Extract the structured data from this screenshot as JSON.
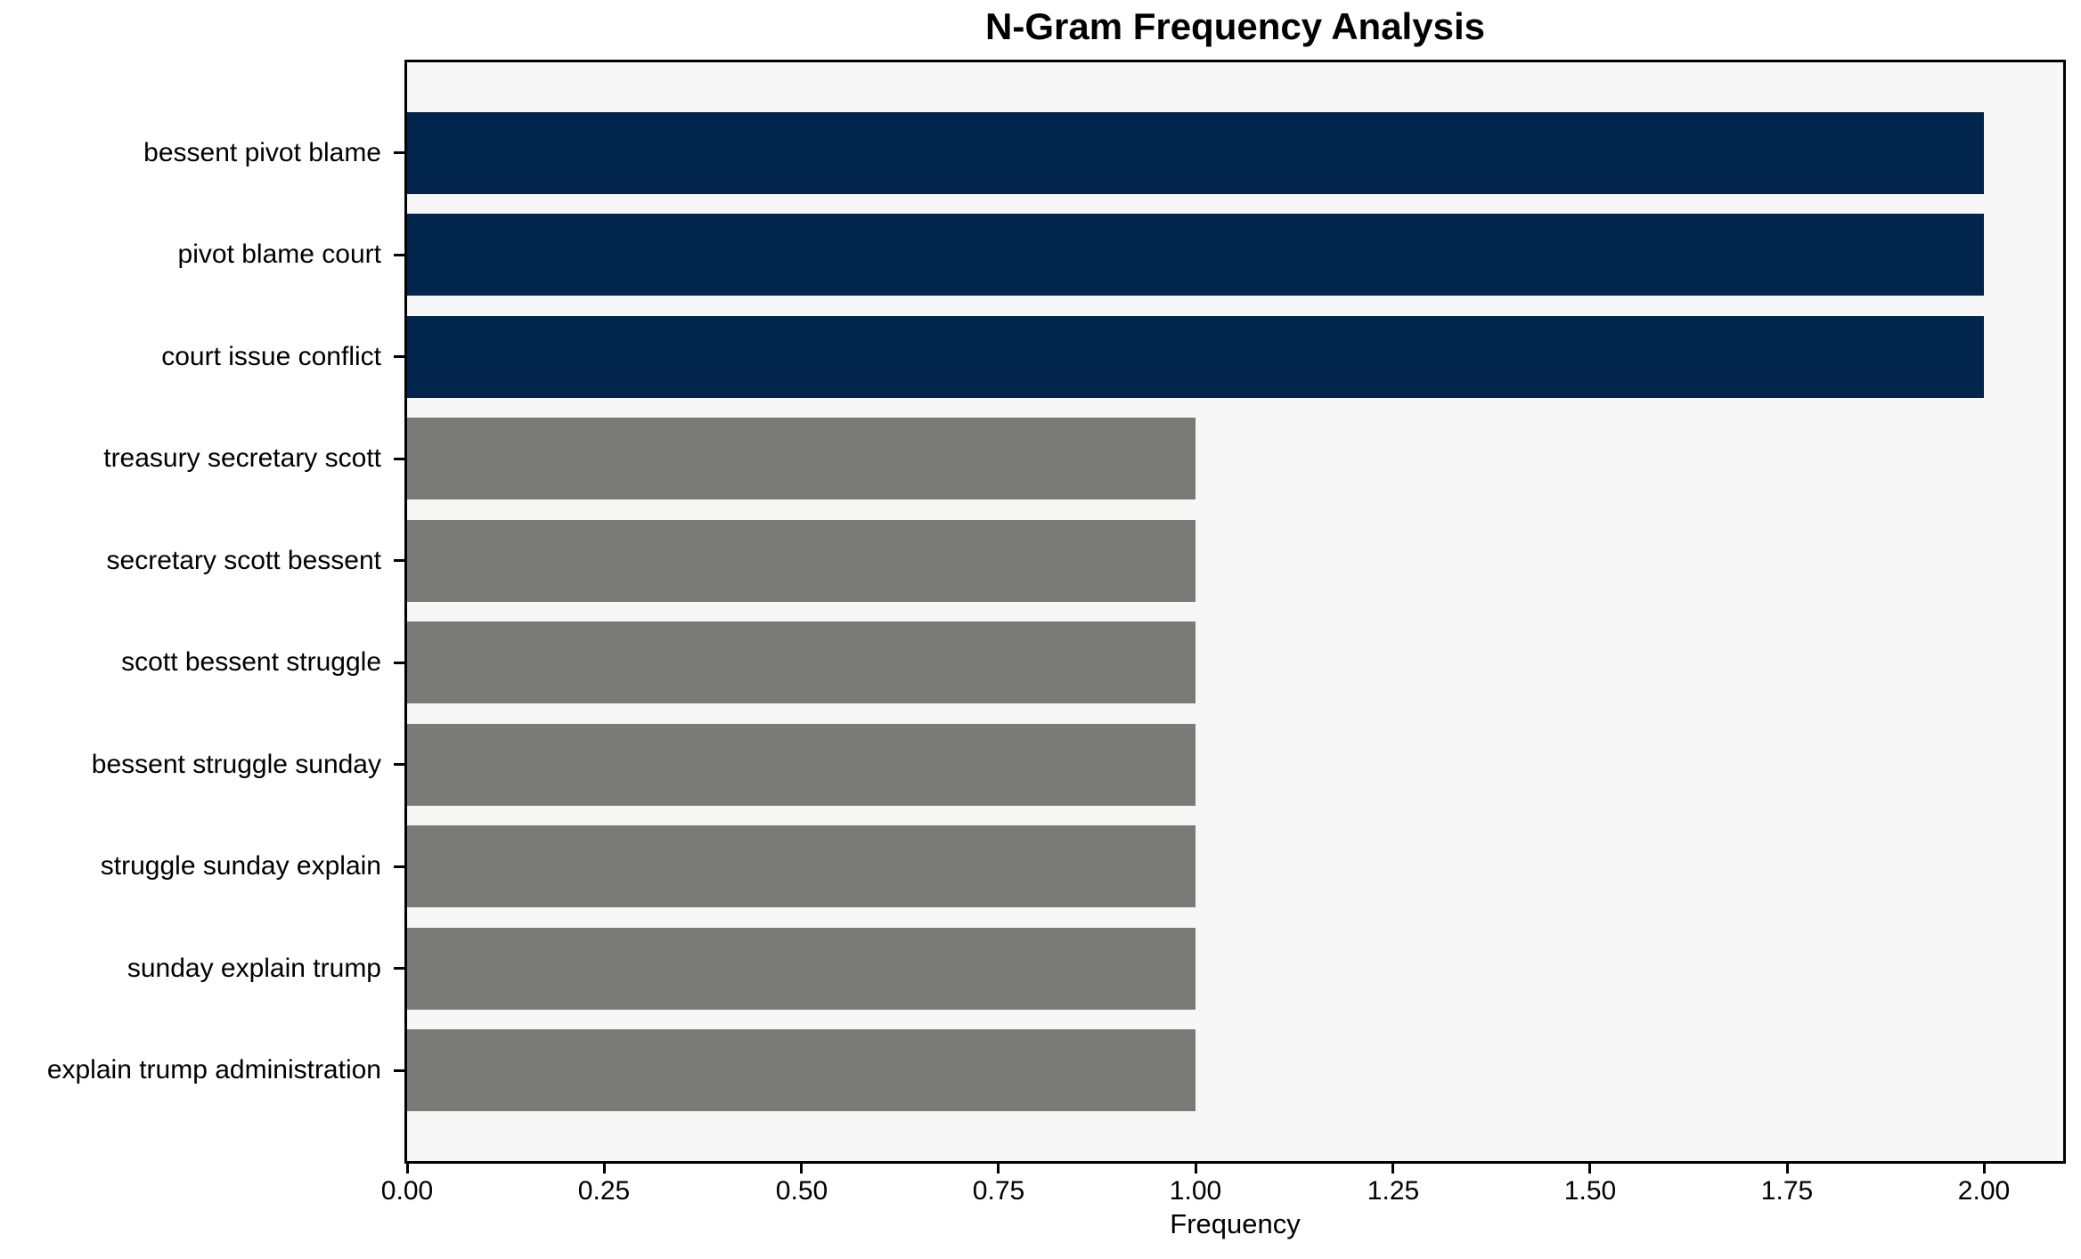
{
  "title": "N-Gram Frequency Analysis",
  "chart_data": {
    "type": "bar",
    "orientation": "horizontal",
    "title": "N-Gram Frequency Analysis",
    "xlabel": "Frequency",
    "ylabel": "",
    "categories": [
      "bessent pivot blame",
      "pivot blame court",
      "court issue conflict",
      "treasury secretary scott",
      "secretary scott bessent",
      "scott bessent struggle",
      "bessent struggle sunday",
      "struggle sunday explain",
      "sunday explain trump",
      "explain trump administration"
    ],
    "values": [
      2,
      2,
      2,
      1,
      1,
      1,
      1,
      1,
      1,
      1
    ],
    "bar_colors": [
      "#02254d",
      "#02254d",
      "#02254d",
      "#7a7a76",
      "#7a7a76",
      "#7a7a76",
      "#7a7a76",
      "#7a7a76",
      "#7a7a76",
      "#7a7a76"
    ],
    "xlim": [
      0,
      2.1
    ],
    "xticks": [
      0.0,
      0.25,
      0.5,
      0.75,
      1.0,
      1.25,
      1.5,
      1.75,
      2.0
    ],
    "xtick_labels": [
      "0.00",
      "0.25",
      "0.50",
      "0.75",
      "1.00",
      "1.25",
      "1.50",
      "1.75",
      "2.00"
    ],
    "grid": false,
    "legend_position": "none",
    "colors": {
      "highlight_bar": "#02254d",
      "default_bar": "#7a7a76",
      "plot_background": "#f7f7f7",
      "figure_background": "#ffffff",
      "spine": "#000000",
      "text": "#000000"
    }
  }
}
